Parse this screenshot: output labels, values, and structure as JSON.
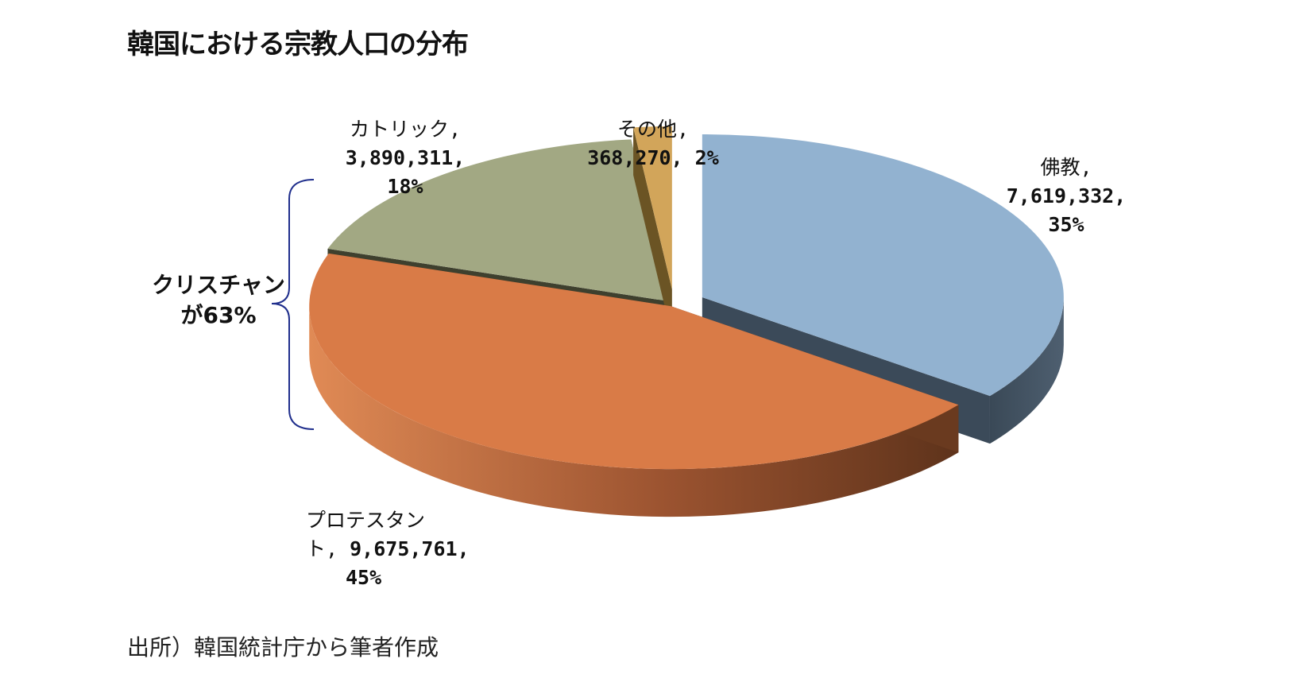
{
  "title": "韓国における宗教人口の分布",
  "source": "出所）韓国統計庁から筆者作成",
  "annotation": {
    "line1": "クリスチャン",
    "line2": "が63%",
    "bracket_color": "#1f2e8c"
  },
  "chart_data": {
    "type": "pie",
    "title": "韓国における宗教人口の分布",
    "three_d": true,
    "slices": [
      {
        "name": "佛教",
        "value": 7619332,
        "value_label": "7,619,332,",
        "percent": 35,
        "percent_label": "35%",
        "color": "#92b2d0",
        "side_color": "#3b4a59",
        "exploded": true
      },
      {
        "name": "プロテスタント",
        "name_line1": "プロテスタン",
        "name_line2": "ト, ",
        "value": 9675761,
        "value_label": "9,675,761,",
        "percent": 45,
        "percent_label": "45%",
        "color": "#d97b47",
        "side_color": "#6a3a1f"
      },
      {
        "name": "カトリック",
        "value": 3890311,
        "value_label": "3,890,311,",
        "percent": 18,
        "percent_label": "18%",
        "color": "#a2a883",
        "side_color": "#3e402e"
      },
      {
        "name": "その他",
        "value": 368270,
        "value_label": "368,270, ",
        "percent": 2,
        "percent_label": "2%",
        "color": "#d2a55a",
        "side_color": "#6b5424",
        "exploded": true
      }
    ]
  }
}
